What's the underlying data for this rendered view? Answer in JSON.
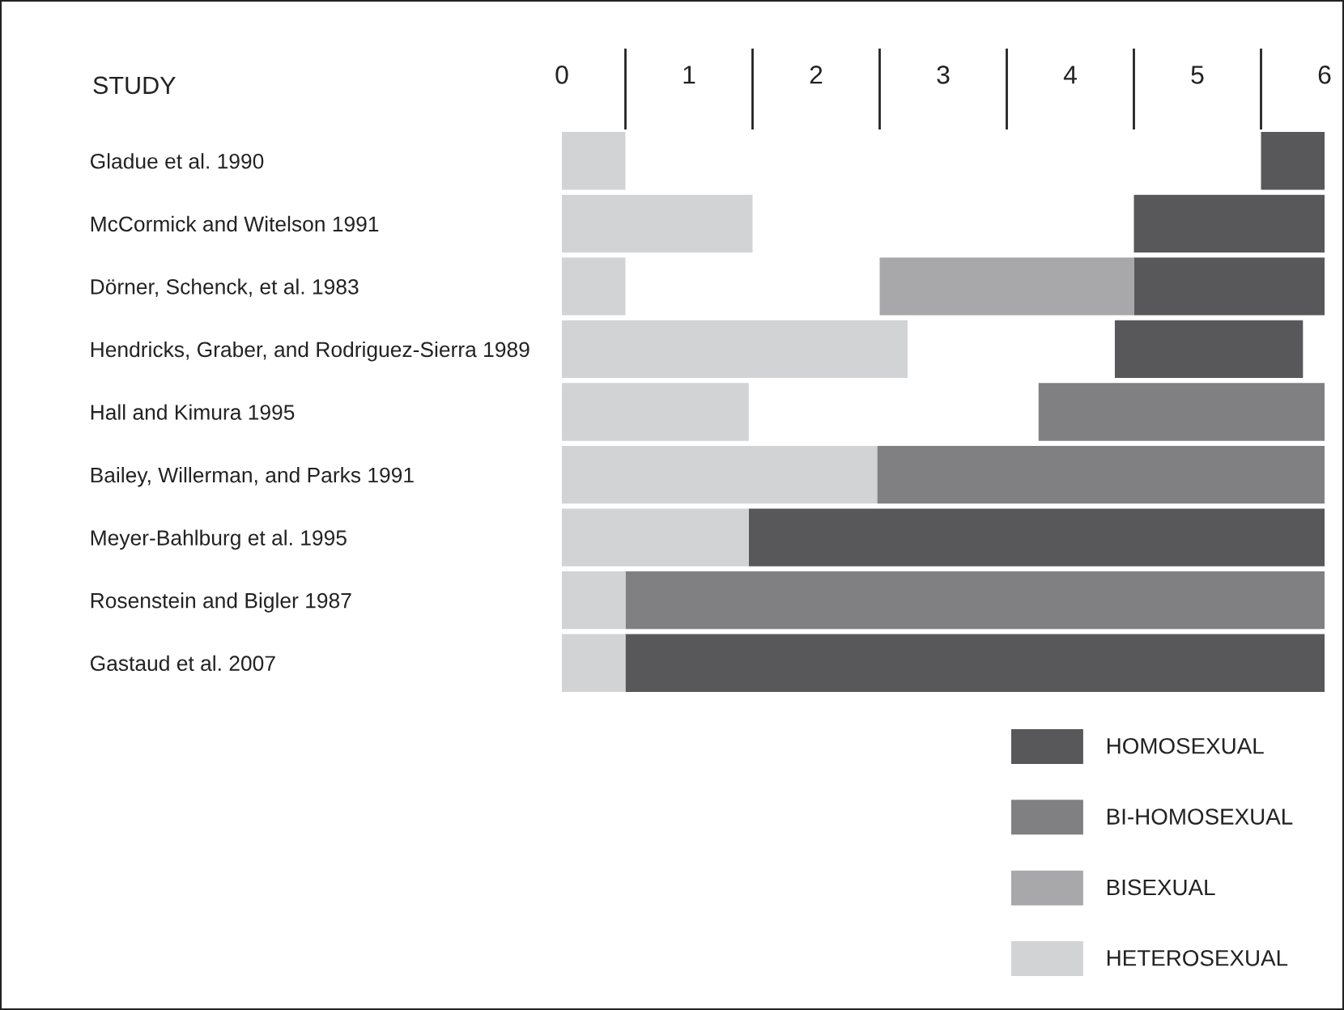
{
  "chart_data": {
    "type": "bar",
    "orientation": "horizontal",
    "ylabel": "STUDY",
    "categories": [
      "Gladue et al. 1990",
      "McCormick and Witelson 1991",
      "Dörner, Schenck, et al. 1983",
      "Hendricks, Graber, and Rodriguez-Sierra 1989",
      "Hall and Kimura 1995",
      "Bailey, Willerman, and Parks 1991",
      "Meyer-Bahlburg et al. 1995",
      "Rosenstein and Bigler 1987",
      "Gastaud et al. 2007"
    ],
    "series": [
      {
        "name": "HOMOSEXUAL",
        "color": "#58585a",
        "base": [
          5.5,
          4.5,
          4.5,
          4.35,
          null,
          null,
          1.47,
          null,
          0.5
        ],
        "values": [
          0.5,
          1.5,
          1.5,
          1.48,
          null,
          null,
          4.53,
          null,
          5.5
        ]
      },
      {
        "name": "BI-HOMOSEXUAL",
        "color": "#808083",
        "base": [
          null,
          null,
          null,
          null,
          3.75,
          2.48,
          null,
          0.5,
          null
        ],
        "values": [
          null,
          null,
          null,
          null,
          2.25,
          3.52,
          null,
          5.5,
          null
        ]
      },
      {
        "name": "BISEXUAL",
        "color": "#a8a8aa",
        "base": [
          null,
          null,
          2.5,
          null,
          null,
          null,
          null,
          null,
          null
        ],
        "values": [
          null,
          null,
          2.0,
          null,
          null,
          null,
          null,
          null,
          null
        ]
      },
      {
        "name": "HETEROSEXUAL",
        "color": "#d2d3d5",
        "base": [
          0,
          0,
          0,
          0,
          0,
          0,
          0,
          0,
          0
        ],
        "values": [
          0.5,
          1.5,
          0.5,
          2.72,
          1.47,
          2.48,
          1.47,
          0.5,
          0.5
        ]
      }
    ],
    "xlim": [
      0,
      6
    ],
    "xticks": [
      0,
      1,
      2,
      3,
      4,
      5,
      6
    ],
    "grid": false,
    "legend": "bottom right"
  }
}
